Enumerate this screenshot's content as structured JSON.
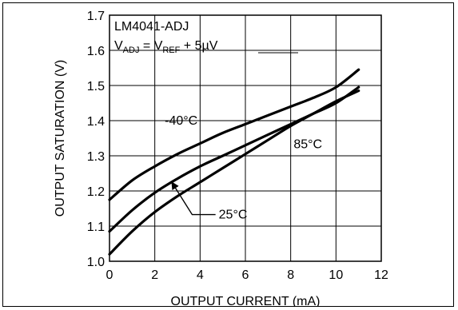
{
  "chart_data": {
    "type": "line",
    "title": "LM4041-ADJ",
    "subtitle": {
      "v1": "V",
      "sub1": "ADJ",
      "mid": " = V",
      "sub2": "REF",
      "tail": " + 5µV"
    },
    "xlabel": "OUTPUT CURRENT (mA)",
    "ylabel": "OUTPUT SATURATION (V)",
    "xlim": [
      0,
      12
    ],
    "ylim": [
      1.0,
      1.7
    ],
    "xticks": [
      0,
      2,
      4,
      6,
      8,
      10,
      12
    ],
    "yticks": [
      1.0,
      1.1,
      1.2,
      1.3,
      1.4,
      1.5,
      1.6,
      1.7
    ],
    "xtick_labels": [
      "0",
      "2",
      "4",
      "6",
      "8",
      "10",
      "12"
    ],
    "ytick_labels": [
      "1.0",
      "1.1",
      "1.2",
      "1.3",
      "1.4",
      "1.5",
      "1.6",
      "1.7"
    ],
    "grid": true,
    "series": [
      {
        "name": "-40°C",
        "x": [
          0,
          1,
          2,
          3,
          4,
          5,
          6,
          7,
          8,
          9,
          10,
          11
        ],
        "y": [
          1.175,
          1.23,
          1.27,
          1.305,
          1.335,
          1.365,
          1.39,
          1.415,
          1.44,
          1.465,
          1.495,
          1.545
        ]
      },
      {
        "name": "25°C",
        "x": [
          0,
          1,
          2,
          3,
          4,
          5,
          6,
          7,
          8,
          9,
          10,
          11
        ],
        "y": [
          1.085,
          1.145,
          1.195,
          1.235,
          1.27,
          1.3,
          1.33,
          1.36,
          1.39,
          1.42,
          1.45,
          1.495
        ]
      },
      {
        "name": "85°C",
        "x": [
          0,
          1,
          2,
          3,
          4,
          5,
          6,
          7,
          8,
          9,
          10,
          11
        ],
        "y": [
          1.02,
          1.085,
          1.14,
          1.185,
          1.225,
          1.265,
          1.305,
          1.345,
          1.385,
          1.42,
          1.455,
          1.485
        ]
      }
    ],
    "annotations": [
      {
        "text": "-40°C",
        "series": 0,
        "x": 3.5,
        "y": 1.402
      },
      {
        "text": "85°C",
        "series": 2,
        "x": 8.2,
        "y": 1.335
      },
      {
        "text": "25°C",
        "series": 1,
        "x": 5.0,
        "y": 1.135
      }
    ]
  }
}
